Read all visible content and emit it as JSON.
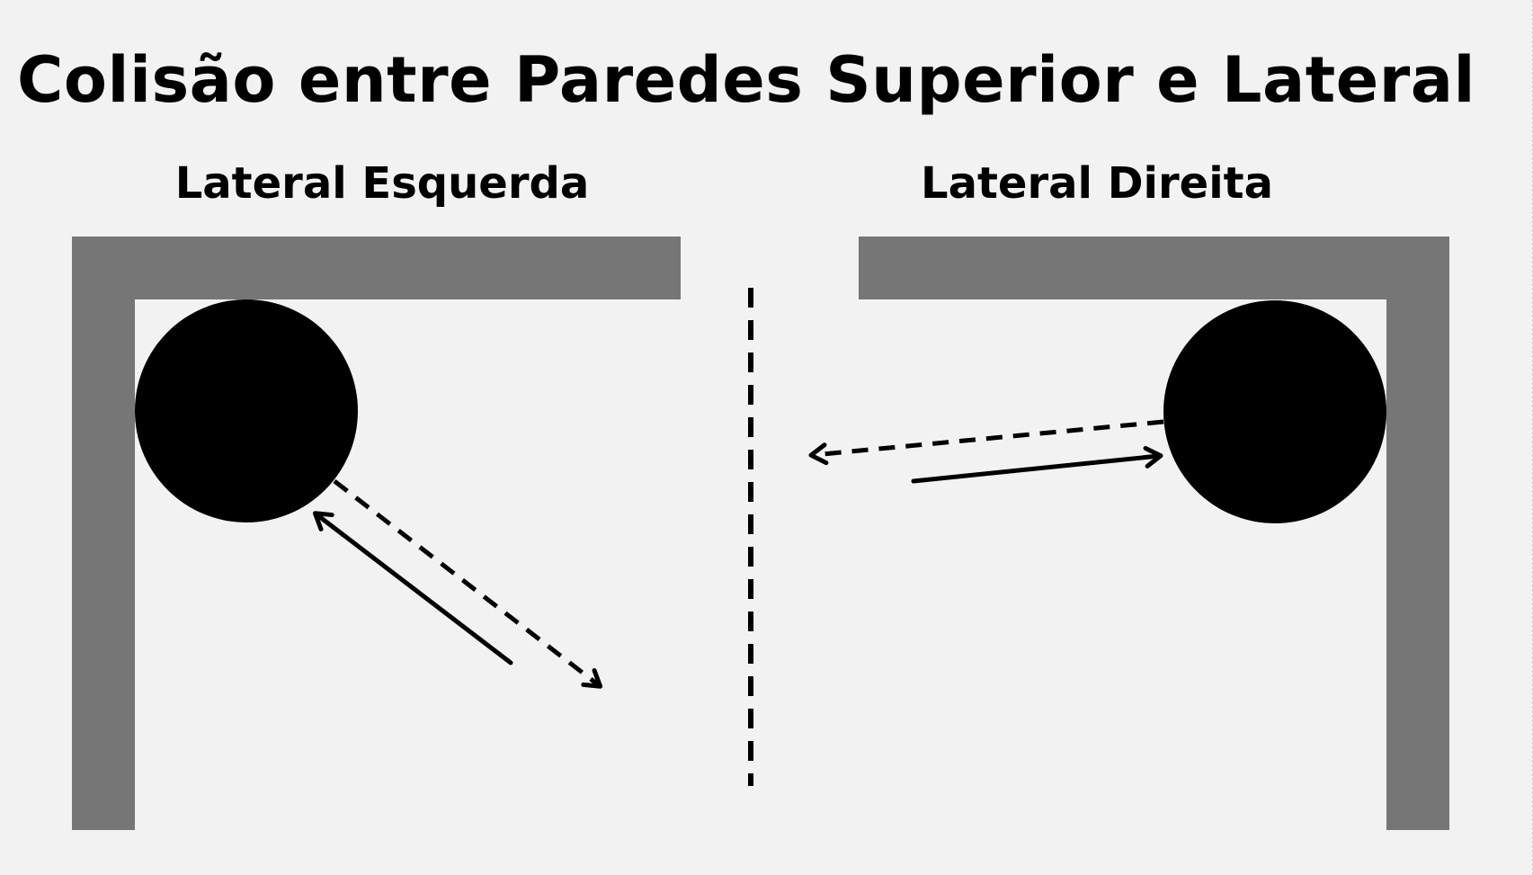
{
  "title": "Colisão entre Paredes Superior e Lateral",
  "panels": {
    "left": {
      "label": "Lateral Esquerda"
    },
    "right": {
      "label": "Lateral Direita"
    }
  },
  "colors": {
    "background": "#f2f2f2",
    "wall": "#767676",
    "ball": "#000000",
    "arrow": "#000000"
  }
}
